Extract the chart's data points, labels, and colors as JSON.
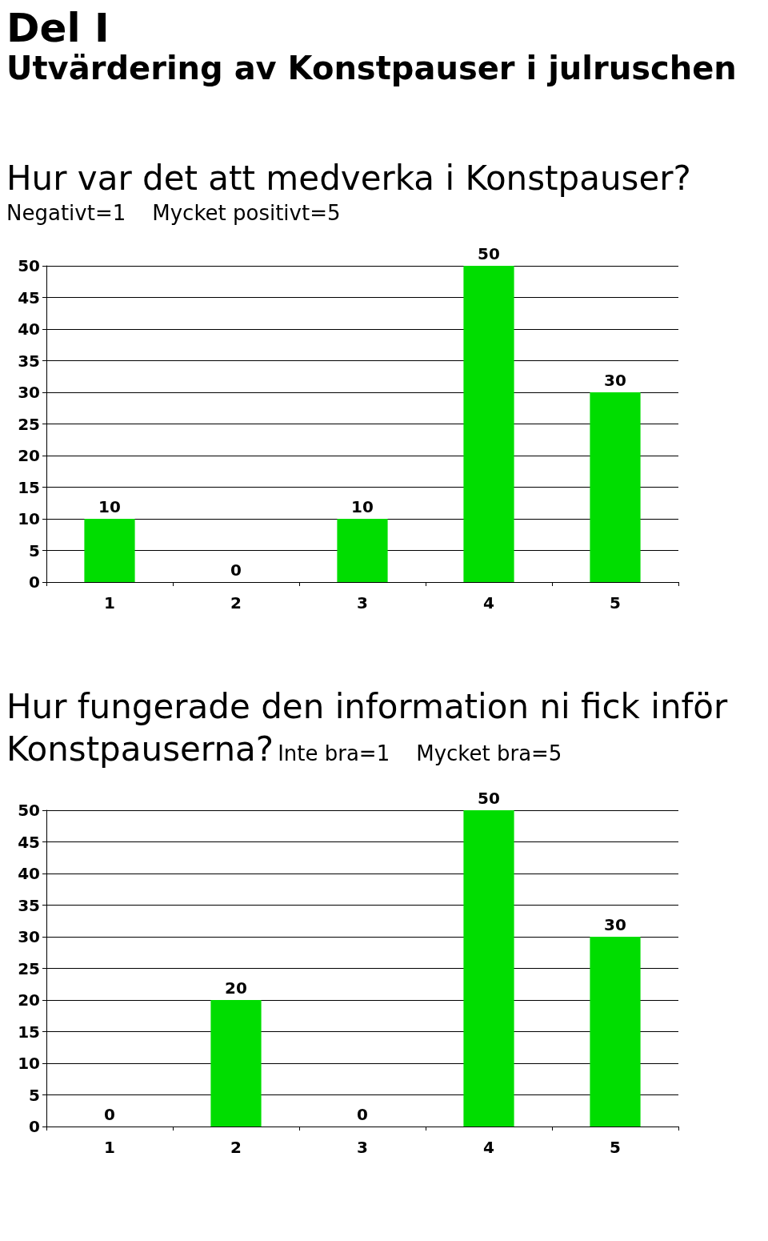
{
  "chart_data": [
    {
      "type": "bar",
      "annotations": [
        "Del I",
        "Utvärdering av Konstpauser i julruschen"
      ],
      "title": "Hur var det att medverka i Konstpauser?",
      "subtitle": "Negativt=1    Mycket positivt=5",
      "categories": [
        "1",
        "2",
        "3",
        "4",
        "5"
      ],
      "values": [
        10,
        0,
        10,
        50,
        30
      ],
      "color": "#00dd00",
      "ylim": [
        0,
        50
      ],
      "yticks": [
        0,
        5,
        10,
        15,
        20,
        25,
        30,
        35,
        40,
        45,
        50
      ],
      "grid": "y",
      "data_labels": true
    },
    {
      "type": "bar",
      "title": "Hur fungerade den information ni fick inför Konstpauserna?",
      "subtitle": "Inte bra=1    Mycket bra=5",
      "categories": [
        "1",
        "2",
        "3",
        "4",
        "5"
      ],
      "values": [
        0,
        20,
        0,
        50,
        30
      ],
      "color": "#00dd00",
      "ylim": [
        0,
        50
      ],
      "yticks": [
        0,
        5,
        10,
        15,
        20,
        25,
        30,
        35,
        40,
        45,
        50
      ],
      "grid": "y",
      "data_labels": true
    }
  ]
}
